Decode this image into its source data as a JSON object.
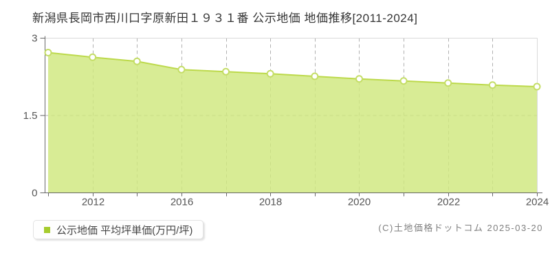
{
  "title": "新潟県長岡市西川口字原新田１９３１番 公示地価 地価推移[2011-2024]",
  "legend": {
    "label": "公示地価 平均坪単価(万円/坪)",
    "marker_color": "#a6cc2e"
  },
  "copyright": "(C)土地価格ドットコム 2025-03-20",
  "chart_data": {
    "type": "area",
    "title": "新潟県長岡市西川口字原新田１９３１番 公示地価 地価推移[2011-2024]",
    "ylabel": "平均坪単価(万円/坪)",
    "ylim": [
      0,
      3
    ],
    "yticks": [
      {
        "value": 0,
        "label": "0"
      },
      {
        "value": 1.5,
        "label": "1.5"
      },
      {
        "value": 3,
        "label": "3"
      }
    ],
    "x_tick_labels": [
      "",
      "2012",
      "",
      "2016",
      "",
      "2018",
      "",
      "2020",
      "",
      "2022",
      "",
      "2024"
    ],
    "series": [
      {
        "name": "公示地価 平均坪単価(万円/坪)",
        "values": [
          2.72,
          2.63,
          2.55,
          2.39,
          2.35,
          2.31,
          2.26,
          2.21,
          2.17,
          2.13,
          2.09,
          2.06
        ]
      }
    ],
    "grid": {
      "vertical_dashed": true,
      "horizontal_dashed_at": 1.5
    },
    "legend_position": "bottom-left",
    "colors": {
      "area_fill": "#cfe87e",
      "area_fill_opacity": 0.82,
      "line": "#bcd94a",
      "marker_fill": "#ffffff",
      "marker_stroke": "#c4dd66",
      "axis": "#666666",
      "grid": "#b0b0b0",
      "border": "#d9d9d9",
      "tick_text": "#555555"
    }
  }
}
